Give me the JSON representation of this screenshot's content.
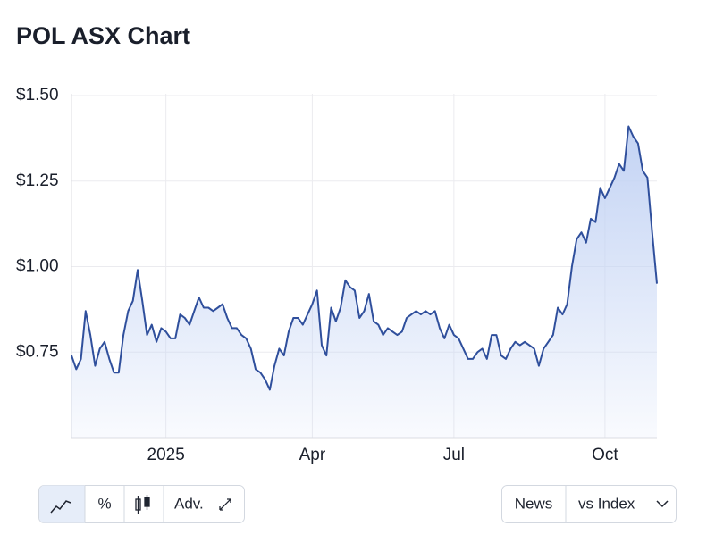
{
  "chart_data": {
    "type": "area",
    "title": "POL ASX Chart",
    "categories": [
      null,
      null,
      null,
      null,
      null,
      null,
      null,
      null,
      null,
      null,
      null,
      null,
      null,
      null,
      null,
      null,
      null,
      null,
      null,
      null,
      "2025",
      null,
      null,
      null,
      null,
      null,
      null,
      null,
      null,
      null,
      null,
      null,
      null,
      null,
      null,
      null,
      null,
      null,
      null,
      null,
      null,
      null,
      null,
      null,
      null,
      null,
      null,
      null,
      null,
      null,
      null,
      "Apr",
      null,
      null,
      null,
      null,
      null,
      null,
      null,
      null,
      null,
      null,
      null,
      null,
      null,
      null,
      null,
      null,
      null,
      null,
      null,
      null,
      null,
      null,
      null,
      null,
      null,
      null,
      null,
      null,
      null,
      "Jul",
      null,
      null,
      null,
      null,
      null,
      null,
      null,
      null,
      null,
      null,
      null,
      null,
      null,
      null,
      null,
      null,
      null,
      null,
      null,
      null,
      null,
      null,
      null,
      null,
      null,
      null,
      null,
      null,
      null,
      null,
      null,
      "Oct",
      null,
      null,
      null,
      null,
      null,
      null,
      null,
      null,
      null,
      null,
      null
    ],
    "values": [
      0.74,
      0.7,
      0.73,
      0.87,
      0.8,
      0.71,
      0.76,
      0.78,
      0.73,
      0.69,
      0.69,
      0.8,
      0.87,
      0.9,
      0.99,
      0.9,
      0.8,
      0.83,
      0.78,
      0.82,
      0.81,
      0.79,
      0.79,
      0.86,
      0.85,
      0.83,
      0.87,
      0.91,
      0.88,
      0.88,
      0.87,
      0.88,
      0.89,
      0.85,
      0.82,
      0.82,
      0.8,
      0.79,
      0.76,
      0.7,
      0.69,
      0.67,
      0.64,
      0.71,
      0.76,
      0.74,
      0.81,
      0.85,
      0.85,
      0.83,
      0.86,
      0.89,
      0.93,
      0.77,
      0.74,
      0.88,
      0.84,
      0.88,
      0.96,
      0.94,
      0.93,
      0.85,
      0.87,
      0.92,
      0.84,
      0.83,
      0.8,
      0.82,
      0.81,
      0.8,
      0.81,
      0.85,
      0.86,
      0.87,
      0.86,
      0.87,
      0.86,
      0.87,
      0.82,
      0.79,
      0.83,
      0.8,
      0.79,
      0.76,
      0.73,
      0.73,
      0.75,
      0.76,
      0.73,
      0.8,
      0.8,
      0.74,
      0.73,
      0.76,
      0.78,
      0.77,
      0.78,
      0.77,
      0.76,
      0.71,
      0.76,
      0.78,
      0.8,
      0.88,
      0.86,
      0.89,
      1.0,
      1.08,
      1.1,
      1.07,
      1.14,
      1.13,
      1.23,
      1.2,
      1.23,
      1.26,
      1.3,
      1.28,
      1.41,
      1.38,
      1.36,
      1.28,
      1.26,
      1.1,
      0.95
    ],
    "color": "#2f4f9c",
    "fill_color": "#c3d3f4",
    "ylim": [
      0.5,
      1.5
    ],
    "yticks": [
      {
        "value": 0.75,
        "label": "$0.75"
      },
      {
        "value": 1.0,
        "label": "$1.00"
      },
      {
        "value": 1.25,
        "label": "$1.25"
      },
      {
        "value": 1.5,
        "label": "$1.50"
      }
    ],
    "grid": true
  },
  "controls": {
    "left": [
      "%",
      "Adv."
    ],
    "right": [
      "News",
      "vs Index"
    ]
  }
}
